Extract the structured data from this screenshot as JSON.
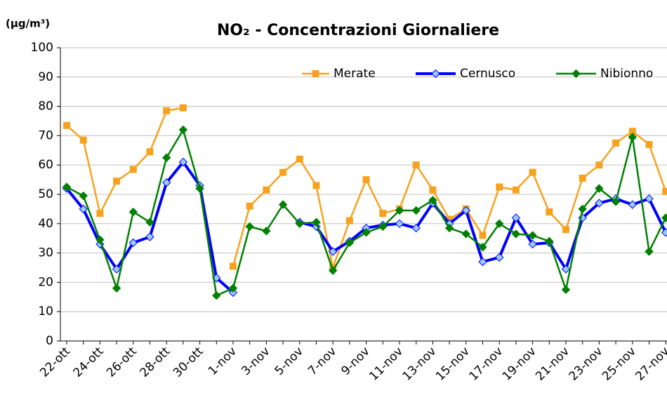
{
  "chart_data": {
    "type": "line",
    "title": "NO₂ - Concentrazioni Giornaliere",
    "y_label": "(µg/m³)",
    "categories": [
      "22-ott",
      null,
      "24-ott",
      null,
      "26-ott",
      null,
      "28-ott",
      null,
      "30-ott",
      null,
      "1-nov",
      null,
      "3-nov",
      null,
      "5-nov",
      null,
      "7-nov",
      null,
      "9-nov",
      null,
      "11-nov",
      null,
      "13-nov",
      null,
      "15-nov",
      null,
      "17-nov",
      null,
      "19-nov",
      null,
      "21-nov",
      null,
      "23-nov",
      null,
      "25-nov",
      null,
      "27-nov"
    ],
    "series": [
      {
        "name": "Merate",
        "color": "#f7a21e",
        "marker": "square",
        "values": [
          73.5,
          68.5,
          43.5,
          54.5,
          58.5,
          64.5,
          78.5,
          79.5,
          null,
          null,
          25.5,
          46,
          51.5,
          57.5,
          62,
          53,
          25,
          41,
          55,
          43.5,
          45,
          60,
          51.5,
          41.5,
          45,
          36,
          52.5,
          51.5,
          57.5,
          44,
          38,
          55.5,
          60,
          67.5,
          71.5,
          67,
          51
        ]
      },
      {
        "name": "Cernusco",
        "color": "#0000ff",
        "marker": "diamond",
        "values": [
          52,
          45,
          33,
          24.5,
          33.5,
          35.5,
          54,
          61,
          53,
          21.5,
          16.5,
          null,
          null,
          null,
          40.5,
          39,
          30.5,
          34,
          38.5,
          39.5,
          40,
          38.5,
          47,
          40,
          44.5,
          27,
          28.5,
          42,
          33,
          33.5,
          24.5,
          42,
          47,
          48.5,
          46.5,
          48.5,
          37
        ]
      },
      {
        "name": "Nibionno",
        "color": "#008000",
        "marker": "diamond",
        "values": [
          52.5,
          49.5,
          34.5,
          18,
          44,
          40.5,
          62.5,
          72,
          52,
          15.5,
          18,
          39,
          37.5,
          46.5,
          40,
          40.5,
          24,
          33.5,
          37,
          39,
          44.5,
          44.5,
          48,
          38.5,
          36.5,
          32,
          40,
          36.5,
          36,
          34,
          17.5,
          45,
          52,
          47.5,
          69.5,
          30.5,
          42
        ]
      }
    ],
    "ylim": [
      0,
      100
    ],
    "yticks": [
      0,
      10,
      20,
      30,
      40,
      50,
      60,
      70,
      80,
      90,
      100
    ],
    "grid": true
  }
}
